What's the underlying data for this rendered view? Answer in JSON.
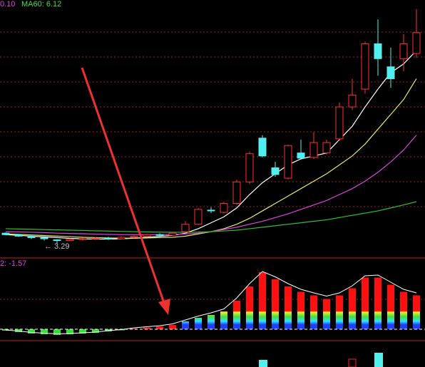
{
  "chart_data": {
    "type": "candlestick",
    "ma_label_prefix": "0.10",
    "ma60_label": "MA60: 6.12",
    "low_label": "← 3.29",
    "macd_label": "2: -1.57",
    "ylim": [
      2.33,
      19.7
    ],
    "open": [
      4.0,
      3.9,
      3.8,
      3.7,
      3.55,
      3.5,
      3.58,
      3.62,
      3.66,
      3.62,
      3.72,
      3.78,
      3.9,
      3.86,
      4.1,
      4.6,
      5.55,
      5.4,
      6.0,
      7.45,
      10.4,
      8.4,
      7.7,
      9.4,
      9.1,
      9.4,
      10.35,
      12.5,
      13.7,
      16.75,
      15.2,
      15.75,
      16.1
    ],
    "high": [
      4.05,
      3.95,
      3.85,
      3.75,
      3.6,
      3.65,
      3.7,
      3.72,
      3.75,
      3.78,
      3.85,
      3.95,
      4.0,
      4.05,
      4.8,
      5.7,
      5.75,
      6.1,
      7.6,
      9.5,
      10.6,
      8.8,
      9.95,
      10.3,
      10.8,
      10.3,
      12.8,
      14.4,
      16.9,
      18.4,
      16.5,
      17.4,
      19.1
    ],
    "low": [
      3.85,
      3.75,
      3.6,
      3.5,
      3.29,
      3.45,
      3.5,
      3.55,
      3.55,
      3.58,
      3.65,
      3.72,
      3.8,
      3.82,
      4.0,
      4.55,
      5.35,
      5.35,
      5.9,
      7.3,
      9.1,
      7.8,
      7.6,
      8.95,
      9.0,
      9.3,
      10.2,
      12.3,
      13.4,
      14.6,
      13.8,
      14.9,
      15.8
    ],
    "close": [
      3.9,
      3.8,
      3.7,
      3.62,
      3.5,
      3.58,
      3.62,
      3.66,
      3.62,
      3.72,
      3.78,
      3.9,
      3.86,
      4.0,
      4.6,
      5.6,
      5.5,
      6.0,
      7.45,
      9.35,
      9.2,
      7.95,
      9.9,
      9.05,
      10.1,
      10.1,
      12.5,
      13.3,
      16.75,
      15.75,
      14.4,
      16.75,
      17.5
    ],
    "series": [
      {
        "color": "#ffffff",
        "values": [
          3.9,
          3.85,
          3.8,
          3.75,
          3.7,
          3.65,
          3.62,
          3.6,
          3.6,
          3.62,
          3.66,
          3.72,
          3.78,
          3.85,
          4.0,
          4.3,
          4.7,
          5.1,
          5.7,
          6.6,
          7.4,
          8.0,
          8.6,
          9.0,
          9.2,
          9.4,
          10.3,
          11.2,
          12.5,
          13.7,
          14.8,
          15.4,
          16.3
        ]
      },
      {
        "color": "#e8e86a",
        "values": [
          3.95,
          3.92,
          3.88,
          3.84,
          3.8,
          3.76,
          3.72,
          3.7,
          3.68,
          3.66,
          3.66,
          3.68,
          3.7,
          3.72,
          3.8,
          3.95,
          4.1,
          4.3,
          4.6,
          5.0,
          5.5,
          6.0,
          6.5,
          7.0,
          7.5,
          8.0,
          8.6,
          9.2,
          10.0,
          11.0,
          12.0,
          13.0,
          14.4
        ]
      },
      {
        "color": "#e040e0",
        "values": [
          4.1,
          4.08,
          4.06,
          4.04,
          4.0,
          3.98,
          3.96,
          3.94,
          3.92,
          3.9,
          3.9,
          3.9,
          3.9,
          3.92,
          3.95,
          4.0,
          4.1,
          4.25,
          4.4,
          4.6,
          4.8,
          5.05,
          5.3,
          5.6,
          5.9,
          6.2,
          6.6,
          7.0,
          7.5,
          8.1,
          8.8,
          9.6,
          10.6
        ]
      },
      {
        "color": "#30c030",
        "values": [
          4.3,
          4.28,
          4.26,
          4.24,
          4.22,
          4.2,
          4.18,
          4.16,
          4.14,
          4.12,
          4.1,
          4.08,
          4.07,
          4.06,
          4.06,
          4.07,
          4.1,
          4.15,
          4.2,
          4.3,
          4.4,
          4.5,
          4.6,
          4.7,
          4.8,
          4.9,
          5.05,
          5.2,
          5.35,
          5.5,
          5.7,
          5.9,
          6.12
        ]
      }
    ],
    "macd": {
      "ylim": [
        -0.32,
        2.0
      ],
      "values": [
        -0.04,
        -0.08,
        -0.12,
        -0.14,
        -0.16,
        -0.14,
        -0.12,
        -0.1,
        -0.06,
        -0.03,
        0.02,
        0.05,
        0.08,
        0.12,
        0.22,
        0.32,
        0.4,
        0.5,
        0.8,
        1.2,
        1.6,
        1.4,
        1.2,
        1.05,
        0.95,
        0.85,
        0.95,
        1.15,
        1.45,
        1.45,
        1.25,
        1.05,
        0.95
      ],
      "dif": [
        -0.02,
        -0.05,
        -0.09,
        -0.11,
        -0.13,
        -0.12,
        -0.1,
        -0.08,
        -0.04,
        -0.01,
        0.04,
        0.07,
        0.1,
        0.15,
        0.26,
        0.37,
        0.46,
        0.57,
        0.88,
        1.28,
        1.62,
        1.47,
        1.28,
        1.12,
        1.02,
        0.93,
        1.02,
        1.22,
        1.5,
        1.52,
        1.32,
        1.12,
        1.02
      ]
    }
  }
}
